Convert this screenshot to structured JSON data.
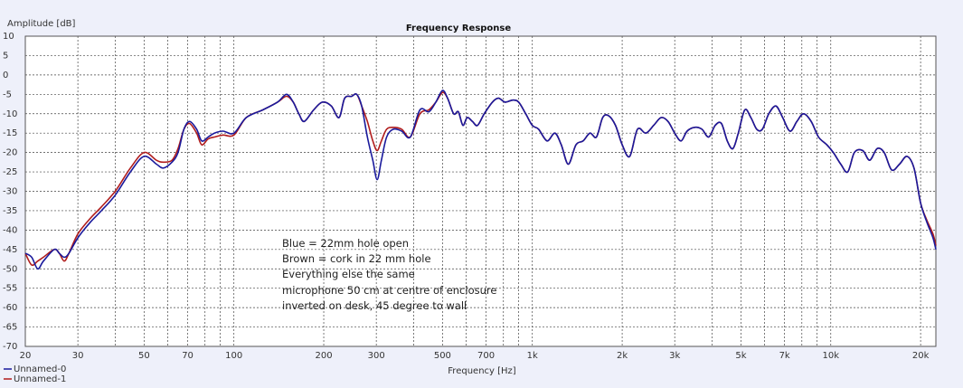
{
  "chart_data": {
    "type": "line",
    "title": "Frequency Response",
    "xlabel": "Frequency [Hz]",
    "ylabel": "Amplitude [dB]",
    "x_scale": "log",
    "xlim": [
      20,
      22500
    ],
    "ylim": [
      -70,
      10
    ],
    "grid": true,
    "legend_position": "bottom-left",
    "x_ticks": [
      {
        "value": 20,
        "label": "20"
      },
      {
        "value": 30,
        "label": "30"
      },
      {
        "value": 50,
        "label": "50"
      },
      {
        "value": 70,
        "label": "70"
      },
      {
        "value": 100,
        "label": "100"
      },
      {
        "value": 200,
        "label": "200"
      },
      {
        "value": 300,
        "label": "300"
      },
      {
        "value": 500,
        "label": "500"
      },
      {
        "value": 700,
        "label": "700"
      },
      {
        "value": 1000,
        "label": "1k"
      },
      {
        "value": 2000,
        "label": "2k"
      },
      {
        "value": 3000,
        "label": "3k"
      },
      {
        "value": 5000,
        "label": "5k"
      },
      {
        "value": 7000,
        "label": "7k"
      },
      {
        "value": 10000,
        "label": "10k"
      },
      {
        "value": 20000,
        "label": "20k"
      }
    ],
    "y_ticks": [
      10,
      5,
      0,
      -5,
      -10,
      -15,
      -20,
      -25,
      -30,
      -35,
      -40,
      -45,
      -50,
      -55,
      -60,
      -65,
      -70
    ],
    "annotations": [
      "Blue = 22mm hole open",
      "Brown = cork in 22 mm hole",
      "Everything else the same",
      "microphone 50 cm at centre of enclosure",
      "inverted on desk, 45 degree to wall"
    ],
    "series": [
      {
        "name": "Unnamed-0",
        "color": "#1a1a9c",
        "points": [
          [
            20,
            -46
          ],
          [
            21,
            -47
          ],
          [
            22,
            -50
          ],
          [
            23,
            -48
          ],
          [
            25,
            -45
          ],
          [
            26,
            -46
          ],
          [
            27,
            -47
          ],
          [
            28,
            -46
          ],
          [
            30,
            -42
          ],
          [
            33,
            -38
          ],
          [
            36,
            -35
          ],
          [
            40,
            -31
          ],
          [
            45,
            -25
          ],
          [
            50,
            -21
          ],
          [
            55,
            -23
          ],
          [
            58,
            -24
          ],
          [
            62,
            -22.5
          ],
          [
            65,
            -20
          ],
          [
            68,
            -14
          ],
          [
            71,
            -12
          ],
          [
            75,
            -14
          ],
          [
            78,
            -17
          ],
          [
            82,
            -16
          ],
          [
            86,
            -15
          ],
          [
            92,
            -14.5
          ],
          [
            100,
            -15
          ],
          [
            110,
            -11
          ],
          [
            125,
            -9
          ],
          [
            140,
            -7
          ],
          [
            150,
            -5
          ],
          [
            158,
            -7
          ],
          [
            165,
            -10
          ],
          [
            172,
            -12
          ],
          [
            185,
            -9
          ],
          [
            198,
            -7
          ],
          [
            212,
            -8
          ],
          [
            225,
            -11
          ],
          [
            235,
            -6
          ],
          [
            248,
            -5.5
          ],
          [
            258,
            -5
          ],
          [
            268,
            -8
          ],
          [
            280,
            -16
          ],
          [
            292,
            -22
          ],
          [
            302,
            -27
          ],
          [
            312,
            -22
          ],
          [
            325,
            -16
          ],
          [
            342,
            -14
          ],
          [
            365,
            -14.5
          ],
          [
            390,
            -16
          ],
          [
            420,
            -9
          ],
          [
            450,
            -9.5
          ],
          [
            475,
            -7
          ],
          [
            500,
            -4
          ],
          [
            520,
            -6
          ],
          [
            545,
            -10
          ],
          [
            565,
            -9.5
          ],
          [
            585,
            -13
          ],
          [
            605,
            -11
          ],
          [
            630,
            -12
          ],
          [
            655,
            -13
          ],
          [
            690,
            -10
          ],
          [
            735,
            -7
          ],
          [
            770,
            -6
          ],
          [
            810,
            -7
          ],
          [
            860,
            -6.5
          ],
          [
            900,
            -7
          ],
          [
            950,
            -10
          ],
          [
            1000,
            -13
          ],
          [
            1050,
            -14
          ],
          [
            1120,
            -17
          ],
          [
            1190,
            -15
          ],
          [
            1250,
            -18
          ],
          [
            1320,
            -23
          ],
          [
            1400,
            -18
          ],
          [
            1480,
            -17
          ],
          [
            1560,
            -15
          ],
          [
            1640,
            -16
          ],
          [
            1720,
            -11
          ],
          [
            1800,
            -10.5
          ],
          [
            1900,
            -13
          ],
          [
            2000,
            -18
          ],
          [
            2120,
            -21
          ],
          [
            2250,
            -14
          ],
          [
            2400,
            -15
          ],
          [
            2550,
            -13
          ],
          [
            2700,
            -11
          ],
          [
            2850,
            -12
          ],
          [
            3000,
            -15
          ],
          [
            3150,
            -17
          ],
          [
            3300,
            -14.5
          ],
          [
            3500,
            -13.5
          ],
          [
            3700,
            -14
          ],
          [
            3900,
            -16
          ],
          [
            4100,
            -13
          ],
          [
            4300,
            -12.5
          ],
          [
            4500,
            -17
          ],
          [
            4700,
            -19
          ],
          [
            4900,
            -15
          ],
          [
            5150,
            -9
          ],
          [
            5400,
            -11
          ],
          [
            5650,
            -14
          ],
          [
            5900,
            -14
          ],
          [
            6200,
            -10
          ],
          [
            6550,
            -8
          ],
          [
            6900,
            -11
          ],
          [
            7300,
            -14.5
          ],
          [
            7700,
            -12
          ],
          [
            8100,
            -10
          ],
          [
            8600,
            -12
          ],
          [
            9100,
            -16
          ],
          [
            9700,
            -18
          ],
          [
            10200,
            -20
          ],
          [
            10800,
            -23
          ],
          [
            11400,
            -25
          ],
          [
            12000,
            -20
          ],
          [
            12800,
            -19.5
          ],
          [
            13500,
            -22
          ],
          [
            14300,
            -19
          ],
          [
            15100,
            -20
          ],
          [
            16000,
            -24.5
          ],
          [
            17000,
            -23
          ],
          [
            18000,
            -21
          ],
          [
            19000,
            -24
          ],
          [
            20000,
            -33
          ],
          [
            21000,
            -38
          ],
          [
            22000,
            -42
          ],
          [
            22500,
            -45
          ]
        ]
      },
      {
        "name": "Unnamed-1",
        "color": "#b01c1c",
        "points": [
          [
            20,
            -46
          ],
          [
            21,
            -49
          ],
          [
            22,
            -48
          ],
          [
            23,
            -47
          ],
          [
            25,
            -45
          ],
          [
            26,
            -46
          ],
          [
            27,
            -48
          ],
          [
            28,
            -46
          ],
          [
            30,
            -41
          ],
          [
            33,
            -37
          ],
          [
            36,
            -34
          ],
          [
            40,
            -30
          ],
          [
            45,
            -24
          ],
          [
            50,
            -20
          ],
          [
            55,
            -22
          ],
          [
            58,
            -22.5
          ],
          [
            62,
            -22
          ],
          [
            65,
            -19
          ],
          [
            68,
            -14
          ],
          [
            71,
            -12.5
          ],
          [
            75,
            -15
          ],
          [
            78,
            -18
          ],
          [
            82,
            -16.5
          ],
          [
            86,
            -16
          ],
          [
            92,
            -15.5
          ],
          [
            100,
            -15.5
          ],
          [
            110,
            -11
          ],
          [
            125,
            -9
          ],
          [
            140,
            -7
          ],
          [
            150,
            -5.5
          ],
          [
            158,
            -7
          ],
          [
            165,
            -10
          ],
          [
            172,
            -12
          ],
          [
            185,
            -9
          ],
          [
            198,
            -7
          ],
          [
            212,
            -8
          ],
          [
            225,
            -11
          ],
          [
            235,
            -6
          ],
          [
            248,
            -5.5
          ],
          [
            258,
            -5
          ],
          [
            268,
            -8
          ],
          [
            280,
            -12
          ],
          [
            292,
            -17
          ],
          [
            302,
            -19.5
          ],
          [
            312,
            -17
          ],
          [
            325,
            -14
          ],
          [
            342,
            -13.5
          ],
          [
            365,
            -14
          ],
          [
            390,
            -16
          ],
          [
            420,
            -10
          ],
          [
            450,
            -9
          ],
          [
            475,
            -7
          ],
          [
            500,
            -4.5
          ],
          [
            520,
            -6
          ],
          [
            545,
            -10
          ],
          [
            565,
            -9.5
          ],
          [
            585,
            -13
          ],
          [
            605,
            -11
          ],
          [
            630,
            -12
          ],
          [
            655,
            -13
          ],
          [
            690,
            -10
          ],
          [
            735,
            -7
          ],
          [
            770,
            -6
          ],
          [
            810,
            -7
          ],
          [
            860,
            -6.5
          ],
          [
            900,
            -7
          ],
          [
            950,
            -10
          ],
          [
            1000,
            -13
          ],
          [
            1050,
            -14
          ],
          [
            1120,
            -17
          ],
          [
            1190,
            -15
          ],
          [
            1250,
            -18
          ],
          [
            1320,
            -23
          ],
          [
            1400,
            -18
          ],
          [
            1480,
            -17
          ],
          [
            1560,
            -15
          ],
          [
            1640,
            -16
          ],
          [
            1720,
            -11
          ],
          [
            1800,
            -10.5
          ],
          [
            1900,
            -13
          ],
          [
            2000,
            -18
          ],
          [
            2120,
            -21
          ],
          [
            2250,
            -14
          ],
          [
            2400,
            -15
          ],
          [
            2550,
            -13
          ],
          [
            2700,
            -11
          ],
          [
            2850,
            -12
          ],
          [
            3000,
            -15
          ],
          [
            3150,
            -17
          ],
          [
            3300,
            -14.5
          ],
          [
            3500,
            -13.5
          ],
          [
            3700,
            -14
          ],
          [
            3900,
            -16
          ],
          [
            4100,
            -13
          ],
          [
            4300,
            -12.5
          ],
          [
            4500,
            -17
          ],
          [
            4700,
            -19
          ],
          [
            4900,
            -15
          ],
          [
            5150,
            -9
          ],
          [
            5400,
            -11
          ],
          [
            5650,
            -14
          ],
          [
            5900,
            -14
          ],
          [
            6200,
            -10
          ],
          [
            6550,
            -8
          ],
          [
            6900,
            -11
          ],
          [
            7300,
            -14.5
          ],
          [
            7700,
            -12
          ],
          [
            8100,
            -10
          ],
          [
            8600,
            -12
          ],
          [
            9100,
            -16
          ],
          [
            9700,
            -18
          ],
          [
            10200,
            -20
          ],
          [
            10800,
            -23
          ],
          [
            11400,
            -25
          ],
          [
            12000,
            -20
          ],
          [
            12800,
            -19.5
          ],
          [
            13500,
            -22
          ],
          [
            14300,
            -19
          ],
          [
            15100,
            -20
          ],
          [
            16000,
            -24.5
          ],
          [
            17000,
            -23
          ],
          [
            18000,
            -21
          ],
          [
            19000,
            -24
          ],
          [
            20000,
            -33
          ],
          [
            21000,
            -37.5
          ],
          [
            22000,
            -41
          ],
          [
            22500,
            -44
          ]
        ]
      }
    ]
  }
}
